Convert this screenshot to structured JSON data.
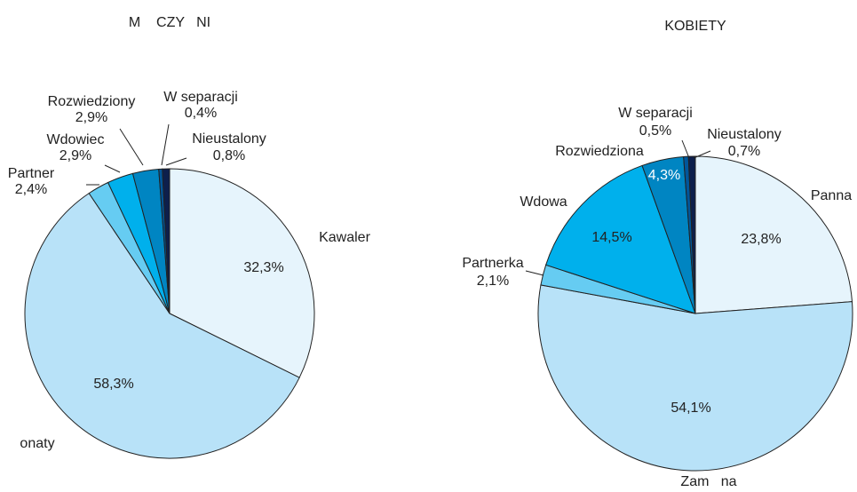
{
  "chart_data": [
    {
      "type": "pie",
      "title": "M    CZY   NI",
      "categories": [
        "Kawaler",
        "onaty",
        "Partner",
        "Wdowiec",
        "Rozwiedziony",
        "W separacji",
        "Nieustalony"
      ],
      "values": [
        32.3,
        58.3,
        2.4,
        2.9,
        2.9,
        0.4,
        0.8
      ],
      "value_labels": [
        "32,3%",
        "58,3%",
        "2,4%",
        "2,9%",
        "2,9%",
        "0,4%",
        "0,8%"
      ],
      "colors": [
        "#e6f4fc",
        "#b8e2f8",
        "#66ccf2",
        "#00b0ec",
        "#0085c2",
        "#00569a",
        "#0d1f4c"
      ]
    },
    {
      "type": "pie",
      "title": "KOBIETY",
      "categories": [
        "Panna",
        "Zam   na",
        "Partnerka",
        "Wdowa",
        "Rozwiedziona",
        "W separacji",
        "Nieustalony"
      ],
      "values": [
        23.8,
        54.1,
        2.1,
        14.5,
        4.3,
        0.5,
        0.7
      ],
      "value_labels": [
        "23,8%",
        "54,1%",
        "2,1%",
        "14,5%",
        "4,3%",
        "0,5%",
        "0,7%"
      ],
      "colors": [
        "#e6f4fc",
        "#b8e2f8",
        "#66ccf2",
        "#00b0ec",
        "#0085c2",
        "#00569a",
        "#0d1f4c"
      ]
    }
  ]
}
